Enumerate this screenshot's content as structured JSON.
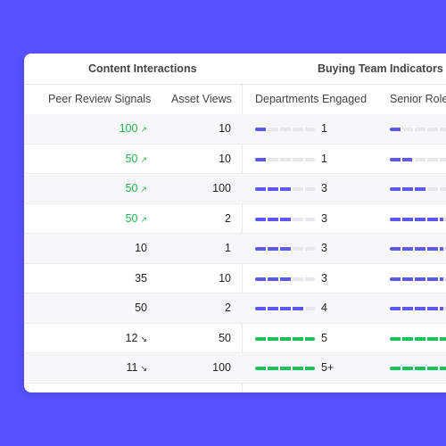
{
  "groups": {
    "content": "Content Interactions",
    "buying": "Buying Team Indicators"
  },
  "columns": {
    "peer": "Peer Review Signals",
    "views": "Asset Views",
    "departments": "Departments Engaged",
    "senior": "Senior Role"
  },
  "colors": {
    "accent": "#5d58f0",
    "positive": "#22b14c",
    "complete": "#1ec25a",
    "background": "#5751fc"
  },
  "rows": [
    {
      "peer": "100",
      "trend": "up",
      "views": "10",
      "departments": "1",
      "dept_level": 0.2,
      "senior_level": 0.12
    },
    {
      "peer": "50",
      "trend": "up",
      "views": "10",
      "departments": "1",
      "dept_level": 0.2,
      "senior_level": 0.25
    },
    {
      "peer": "50",
      "trend": "up",
      "views": "100",
      "departments": "3",
      "dept_level": 0.6,
      "senior_level": 0.4
    },
    {
      "peer": "50",
      "trend": "up",
      "views": "2",
      "departments": "3",
      "dept_level": 0.6,
      "senior_level": 0.6
    },
    {
      "peer": "10",
      "trend": "none",
      "views": "1",
      "departments": "3",
      "dept_level": 0.6,
      "senior_level": 0.6
    },
    {
      "peer": "35",
      "trend": "none",
      "views": "10",
      "departments": "3",
      "dept_level": 0.6,
      "senior_level": 0.6
    },
    {
      "peer": "50",
      "trend": "none",
      "views": "2",
      "departments": "4",
      "dept_level": 0.8,
      "senior_level": 0.6
    },
    {
      "peer": "12",
      "trend": "down",
      "views": "50",
      "departments": "5",
      "dept_level": 1.0,
      "senior_level": 0.6
    },
    {
      "peer": "11",
      "trend": "down",
      "views": "100",
      "departments": "5+",
      "dept_level": 1.0,
      "senior_level": 0.6
    }
  ]
}
